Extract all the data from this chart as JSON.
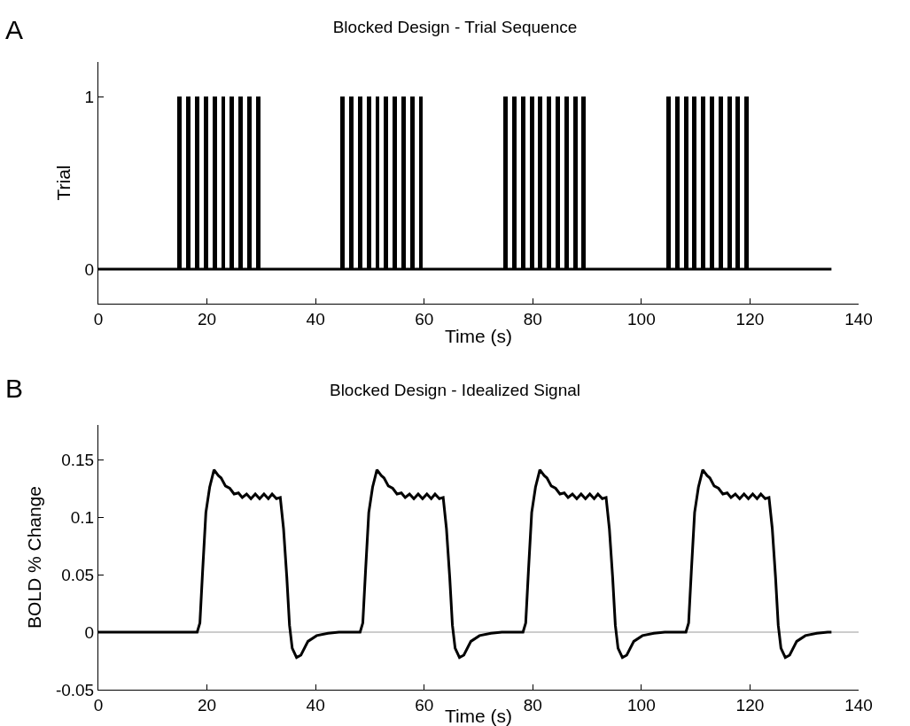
{
  "chart_data": [
    {
      "type": "bar",
      "title": "Blocked Design - Trial Sequence",
      "xlabel": "Time (s)",
      "ylabel": "Trial",
      "annotations": [
        "A"
      ],
      "xlim": [
        0,
        140
      ],
      "xticks": [
        0,
        20,
        40,
        60,
        80,
        100,
        120,
        140
      ],
      "ylim": [
        -0.2,
        1.2
      ],
      "yticks": [
        0,
        1
      ],
      "grid": false,
      "series": [
        {
          "color": "#000000",
          "x": [
            15,
            16.6,
            18.2,
            19.8,
            21.4,
            23,
            24.6,
            26.2,
            27.8,
            29.4,
            45,
            46.6,
            48.2,
            49.8,
            51.4,
            53,
            54.6,
            56.2,
            57.8,
            59.4,
            75,
            76.6,
            78.2,
            79.8,
            81.4,
            83,
            84.6,
            86.2,
            87.8,
            89.4,
            105,
            106.6,
            108.2,
            109.8,
            111.4,
            113,
            114.6,
            116.2,
            117.8,
            119.4
          ],
          "values": [
            1,
            1,
            1,
            1,
            1,
            1,
            1,
            1,
            1,
            1,
            1,
            1,
            1,
            1,
            1,
            1,
            1,
            1,
            1,
            1,
            1,
            1,
            1,
            1,
            1,
            1,
            1,
            1,
            1,
            1,
            1,
            1,
            1,
            1,
            1,
            1,
            1,
            1,
            1,
            1
          ]
        },
        {
          "type": "line",
          "color": "#000000",
          "x": [
            0,
            135
          ],
          "values": [
            0,
            0
          ]
        }
      ]
    },
    {
      "type": "line",
      "title": "Blocked Design - Idealized Signal",
      "xlabel": "Time (s)",
      "ylabel": "BOLD % Change",
      "annotations": [
        "B"
      ],
      "xlim": [
        0,
        140
      ],
      "xticks": [
        0,
        20,
        40,
        60,
        80,
        100,
        120,
        140
      ],
      "ylim": [
        -0.05,
        0.18
      ],
      "yticks": [
        -0.05,
        0,
        0.05,
        0.1,
        0.15
      ],
      "grid": false,
      "marker": "none",
      "line_style": "solid",
      "ref_lines": [
        {
          "axis": "y",
          "value": 0,
          "color": "#999999"
        }
      ],
      "series": [
        {
          "color": "#000000",
          "x": [
            0,
            18.2,
            18.7,
            19.2,
            19.8,
            20.5,
            21.3,
            22.1,
            22.6,
            23.4,
            24.2,
            25,
            25.8,
            26.5,
            27.3,
            28.1,
            28.9,
            29.7,
            30.5,
            31.3,
            32,
            32.8,
            33.5,
            34.1,
            34.7,
            35.2,
            35.7,
            36.5,
            37.3,
            38.6,
            40.2,
            42.3,
            44.3,
            48.2,
            48.7,
            49.2,
            49.8,
            50.5,
            51.3,
            52.1,
            52.6,
            53.4,
            54.2,
            55,
            55.8,
            56.5,
            57.3,
            58.1,
            58.9,
            59.7,
            60.5,
            61.3,
            62,
            62.8,
            63.5,
            64.1,
            64.7,
            65.2,
            65.7,
            66.5,
            67.3,
            68.6,
            70.2,
            72.3,
            74.3,
            78.2,
            78.7,
            79.2,
            79.8,
            80.5,
            81.3,
            82.1,
            82.6,
            83.4,
            84.2,
            85,
            85.8,
            86.5,
            87.3,
            88.1,
            88.9,
            89.7,
            90.5,
            91.3,
            92,
            92.8,
            93.5,
            94.1,
            94.7,
            95.2,
            95.7,
            96.5,
            97.3,
            98.6,
            100.2,
            102.3,
            104.3,
            108.2,
            108.7,
            109.2,
            109.8,
            110.5,
            111.3,
            112.1,
            112.6,
            113.4,
            114.2,
            115,
            115.8,
            116.5,
            117.3,
            118.1,
            118.9,
            119.7,
            120.5,
            121.3,
            122,
            122.8,
            123.5,
            124.1,
            124.7,
            125.2,
            125.7,
            126.5,
            127.3,
            128.6,
            130.2,
            132.3,
            134.3,
            135
          ],
          "values": [
            0,
            0,
            0.008,
            0.053,
            0.104,
            0.126,
            0.141,
            0.136,
            0.134,
            0.127,
            0.125,
            0.12,
            0.121,
            0.117,
            0.12,
            0.116,
            0.12,
            0.116,
            0.12,
            0.116,
            0.12,
            0.116,
            0.117,
            0.09,
            0.048,
            0.006,
            -0.014,
            -0.022,
            -0.02,
            -0.008,
            -0.003,
            -0.001,
            0,
            0,
            0.008,
            0.053,
            0.104,
            0.126,
            0.141,
            0.136,
            0.134,
            0.127,
            0.125,
            0.12,
            0.121,
            0.117,
            0.12,
            0.116,
            0.12,
            0.116,
            0.12,
            0.116,
            0.12,
            0.116,
            0.117,
            0.09,
            0.048,
            0.006,
            -0.014,
            -0.022,
            -0.02,
            -0.008,
            -0.003,
            -0.001,
            0,
            0,
            0.008,
            0.053,
            0.104,
            0.126,
            0.141,
            0.136,
            0.134,
            0.127,
            0.125,
            0.12,
            0.121,
            0.117,
            0.12,
            0.116,
            0.12,
            0.116,
            0.12,
            0.116,
            0.12,
            0.116,
            0.117,
            0.09,
            0.048,
            0.006,
            -0.014,
            -0.022,
            -0.02,
            -0.008,
            -0.003,
            -0.001,
            0,
            0,
            0.008,
            0.053,
            0.104,
            0.126,
            0.141,
            0.136,
            0.134,
            0.127,
            0.125,
            0.12,
            0.121,
            0.117,
            0.12,
            0.116,
            0.12,
            0.116,
            0.12,
            0.116,
            0.12,
            0.116,
            0.117,
            0.09,
            0.048,
            0.006,
            -0.014,
            -0.022,
            -0.02,
            -0.008,
            -0.003,
            -0.001,
            0,
            0
          ]
        }
      ]
    }
  ]
}
